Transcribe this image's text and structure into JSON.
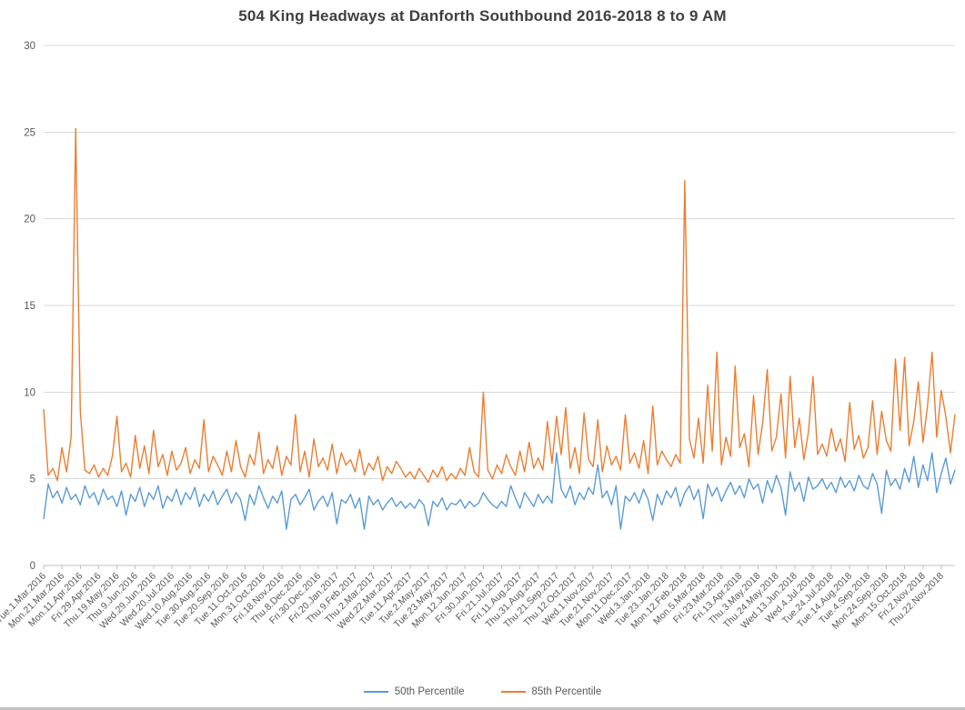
{
  "chart_data": {
    "type": "line",
    "title": "504 King Headways at Danforth Southbound 2016-2018 8 to 9 AM",
    "xlabel": "",
    "ylabel": "",
    "ylim": [
      0,
      30
    ],
    "yticks": [
      0,
      5,
      10,
      15,
      20,
      25,
      30
    ],
    "grid": "horizontal",
    "legend_position": "bottom",
    "colors": {
      "grid": "#d9d9d9",
      "axis": "#bfbfbf",
      "tick_text": "#595959",
      "title_text": "#3f3f3f"
    },
    "x_tick_every": 4,
    "x_tick_labels": [
      "Tue.1.Mar.2016",
      "Mon.21.Mar.2016",
      "Mon.11.Apr.2016",
      "Fri.29.Apr.2016",
      "Thu.19.May.2016",
      "Thu.9.Jun.2016",
      "Wed.29.Jun.2016",
      "Wed.20.Jul.2016",
      "Wed.10.Aug.2016",
      "Tue.30.Aug.2016",
      "Tue.20.Sep.2016",
      "Tue.11.Oct.2016",
      "Mon.31.Oct.2016",
      "Fri.18.Nov.2016",
      "Thu.8.Dec.2016",
      "Fri.30.Dec.2016",
      "Fri.20.Jan.2017",
      "Thu.9.Feb.2017",
      "Thu.2.Mar.2017",
      "Wed.22.Mar.2017",
      "Tue.11.Apr.2017",
      "Tue.2.May.2017",
      "Tue.23.May.2017",
      "Mon.12.Jun.2017",
      "Fri.30.Jun.2017",
      "Fri.21.Jul.2017",
      "Fri.11.Aug.2017",
      "Thu.31.Aug.2017",
      "Thu.21.Sep.2017",
      "Thu.12.Oct.2017",
      "Wed.1.Nov.2017",
      "Tue.21.Nov.2017",
      "Mon.11.Dec.2017",
      "Wed.3.Jan.2018",
      "Tue.23.Jan.2018",
      "Mon.12.Feb.2018",
      "Mon.5.Mar.2018",
      "Fri.23.Mar.2018",
      "Fri.13.Apr.2018",
      "Thu.3.May.2018",
      "Thu.24.May.2018",
      "Wed.13.Jun.2018",
      "Wed.4.Jul.2018",
      "Tue.24.Jul.2018",
      "Tue.14.Aug.2018",
      "Tue.4.Sep.2018",
      "Mon.24.Sep.2018",
      "Mon.15.Oct.2018",
      "Fri.2.Nov.2018",
      "Thu.22.Nov.2018"
    ],
    "series": [
      {
        "name": "50th Percentile",
        "color": "#5b9bd5",
        "values": [
          2.7,
          4.7,
          3.9,
          4.3,
          3.6,
          4.5,
          3.8,
          4.1,
          3.5,
          4.6,
          3.9,
          4.2,
          3.5,
          4.4,
          3.8,
          4.0,
          3.4,
          4.3,
          2.9,
          4.1,
          3.7,
          4.5,
          3.4,
          4.2,
          3.8,
          4.6,
          3.3,
          4.0,
          3.7,
          4.4,
          3.5,
          4.2,
          3.8,
          4.5,
          3.4,
          4.1,
          3.7,
          4.3,
          3.5,
          4.0,
          4.4,
          3.6,
          4.2,
          3.8,
          2.6,
          4.1,
          3.5,
          4.6,
          3.9,
          3.3,
          4.0,
          3.6,
          4.3,
          2.1,
          3.8,
          4.1,
          3.5,
          3.9,
          4.4,
          3.2,
          3.7,
          4.0,
          3.4,
          4.2,
          2.4,
          3.8,
          3.6,
          4.1,
          3.3,
          3.9,
          2.1,
          4.0,
          3.5,
          3.8,
          3.2,
          3.6,
          3.9,
          3.4,
          3.7,
          3.3,
          3.6,
          3.3,
          3.8,
          3.5,
          2.3,
          3.7,
          3.4,
          3.9,
          3.2,
          3.6,
          3.5,
          3.8,
          3.3,
          3.7,
          3.4,
          3.6,
          4.2,
          3.8,
          3.5,
          3.3,
          3.7,
          3.4,
          4.6,
          3.9,
          3.3,
          4.2,
          3.8,
          3.4,
          4.1,
          3.6,
          4.0,
          3.6,
          6.5,
          4.4,
          3.9,
          4.6,
          3.5,
          4.2,
          3.8,
          4.5,
          4.1,
          5.8,
          3.9,
          4.3,
          3.5,
          4.6,
          2.1,
          4.0,
          3.7,
          4.2,
          3.6,
          4.4,
          3.8,
          2.6,
          4.1,
          3.5,
          4.3,
          3.9,
          4.5,
          3.4,
          4.2,
          4.6,
          3.8,
          4.4,
          2.7,
          4.7,
          4.0,
          4.5,
          3.7,
          4.3,
          4.8,
          4.1,
          4.6,
          3.9,
          5.0,
          4.4,
          4.7,
          3.6,
          4.9,
          4.2,
          5.2,
          4.5,
          2.9,
          5.4,
          4.3,
          4.8,
          3.7,
          5.1,
          4.4,
          4.6,
          5.0,
          4.4,
          4.8,
          4.2,
          5.1,
          4.5,
          4.9,
          4.3,
          5.2,
          4.6,
          4.4,
          5.3,
          4.7,
          3.0,
          5.5,
          4.6,
          5.0,
          4.4,
          5.6,
          4.8,
          6.3,
          4.5,
          5.8,
          4.9,
          6.5,
          4.2,
          5.3,
          6.2,
          4.7,
          5.5
        ]
      },
      {
        "name": "85th Percentile",
        "color": "#ed7d31",
        "values": [
          9.0,
          5.2,
          5.6,
          4.9,
          6.8,
          5.4,
          7.4,
          25.2,
          8.9,
          5.5,
          5.3,
          5.8,
          5.1,
          5.6,
          5.2,
          6.3,
          8.6,
          5.4,
          5.9,
          5.1,
          7.5,
          5.6,
          6.9,
          5.3,
          7.8,
          5.7,
          6.4,
          5.2,
          6.6,
          5.5,
          5.9,
          6.8,
          5.3,
          6.1,
          5.6,
          8.4,
          5.4,
          6.3,
          5.8,
          5.2,
          6.6,
          5.4,
          7.2,
          5.7,
          5.1,
          6.4,
          5.8,
          7.7,
          5.3,
          6.1,
          5.6,
          6.9,
          5.2,
          6.3,
          5.8,
          8.7,
          5.4,
          6.6,
          5.1,
          7.3,
          5.7,
          6.2,
          5.5,
          7.0,
          5.3,
          6.5,
          5.8,
          6.1,
          5.4,
          6.7,
          5.2,
          5.9,
          5.5,
          6.3,
          4.9,
          5.7,
          5.3,
          6.0,
          5.6,
          5.1,
          5.4,
          5.0,
          5.6,
          5.2,
          4.8,
          5.5,
          5.1,
          5.7,
          4.9,
          5.3,
          5.0,
          5.6,
          5.2,
          6.8,
          5.4,
          5.1,
          10.0,
          5.5,
          5.0,
          5.8,
          5.3,
          6.4,
          5.7,
          5.2,
          6.6,
          5.4,
          7.1,
          5.6,
          6.2,
          5.5,
          8.3,
          5.9,
          8.6,
          6.4,
          9.1,
          5.6,
          6.8,
          5.3,
          8.8,
          6.1,
          5.7,
          8.4,
          5.4,
          6.9,
          5.8,
          6.3,
          5.5,
          8.7,
          5.9,
          6.5,
          5.6,
          7.2,
          5.3,
          9.2,
          5.8,
          6.6,
          6.1,
          5.7,
          6.4,
          5.9,
          22.2,
          7.3,
          6.2,
          8.5,
          5.9,
          10.4,
          6.6,
          12.3,
          5.8,
          7.4,
          6.3,
          11.5,
          6.8,
          7.6,
          5.7,
          9.8,
          6.4,
          8.2,
          11.3,
          6.6,
          7.4,
          9.9,
          6.2,
          10.9,
          6.8,
          8.5,
          6.1,
          7.7,
          10.9,
          6.4,
          7.0,
          6.3,
          7.9,
          6.6,
          7.3,
          6.0,
          9.4,
          6.7,
          7.5,
          6.2,
          6.8,
          9.5,
          6.4,
          8.9,
          7.2,
          6.6,
          11.9,
          7.8,
          12.0,
          6.9,
          8.3,
          10.6,
          7.1,
          9.2,
          12.3,
          7.4,
          10.1,
          8.6,
          6.5,
          8.7
        ]
      }
    ]
  }
}
